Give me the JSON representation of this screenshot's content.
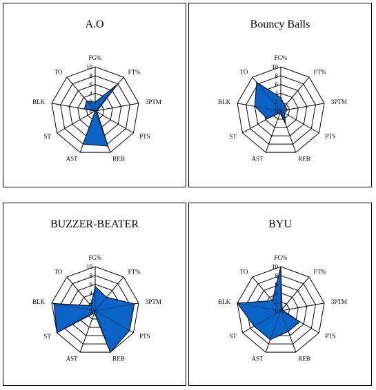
{
  "colors": {
    "fill": "#0a64c8",
    "grid": "#000000",
    "background": "#ffffff"
  },
  "chart_data": [
    {
      "type": "radar",
      "title": "A.O",
      "axes": [
        "FG%",
        "FT%",
        "3PTM",
        "PTS",
        "REB",
        "AST",
        "ST",
        "BLK",
        "TO"
      ],
      "ticks": [
        "0",
        "2",
        "4",
        "6",
        "8",
        "10"
      ],
      "range": [
        0,
        10
      ],
      "values": [
        2,
        8,
        0.5,
        0.5,
        8.5,
        8,
        0,
        2.5,
        3
      ]
    },
    {
      "type": "radar",
      "title": "Bouncy Balls",
      "axes": [
        "FG%",
        "FT%",
        "3PTM",
        "PTS",
        "REB",
        "AST",
        "ST",
        "BLK",
        "TO"
      ],
      "ticks": [
        "0",
        "2",
        "4",
        "6",
        "8",
        "10"
      ],
      "range": [
        0,
        10
      ],
      "values": [
        3,
        1.5,
        1.5,
        1,
        3,
        0.5,
        3.5,
        6,
        8.5
      ]
    },
    {
      "type": "radar",
      "title": "BUZZER-BEATER",
      "axes": [
        "FG%",
        "FT%",
        "3PTM",
        "PTS",
        "REB",
        "AST",
        "ST",
        "BLK",
        "TO"
      ],
      "ticks": [
        "0",
        "2",
        "4",
        "6",
        "8",
        "10"
      ],
      "range": [
        0,
        10
      ],
      "values": [
        5.5,
        4,
        9,
        9,
        10,
        0.5,
        10,
        9.5,
        1.5
      ]
    },
    {
      "type": "radar",
      "title": "BYU",
      "axes": [
        "FG%",
        "FT%",
        "3PTM",
        "PTS",
        "REB",
        "AST",
        "ST",
        "BLK",
        "TO"
      ],
      "ticks": [
        "0",
        "2",
        "4",
        "6",
        "8",
        "10"
      ],
      "range": [
        0,
        10
      ],
      "values": [
        10,
        0.5,
        0.5,
        5,
        5,
        7,
        7,
        10,
        3
      ]
    }
  ]
}
